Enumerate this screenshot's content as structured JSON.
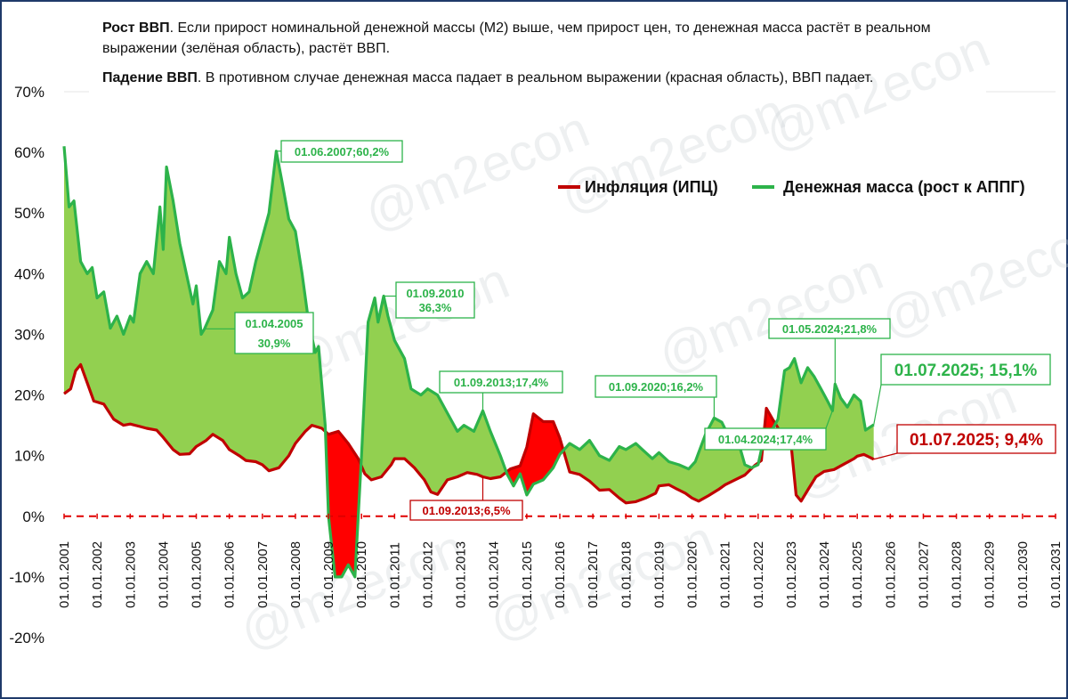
{
  "header": {
    "line1_bold": "Рост ВВП",
    "line1_text": ". Если прирост номинальной денежной массы (М2) выше, чем прирост цен,  то денежная масса растёт в реальном выражении (зелёная область), растёт ВВП.",
    "line2_bold": "Падение ВВП",
    "line2_text": ". В противном случае денежная масса падает в реальном выражении (красная область), ВВП падает."
  },
  "watermark": "@m2econ",
  "colors": {
    "inflation": "#c00000",
    "money": "#2db34a",
    "green_fill": "#92d050",
    "red_fill": "#ff0000",
    "zero_line": "#e00000",
    "frame": "#1f3a6a"
  },
  "chart_data": {
    "type": "line",
    "ylim": [
      -20,
      70
    ],
    "yticks": [
      "70%",
      "60%",
      "50%",
      "40%",
      "30%",
      "20%",
      "10%",
      "0%",
      "-10%",
      "-20%"
    ],
    "xticks": [
      "01.01.2001",
      "01.01.2002",
      "01.01.2003",
      "01.01.2004",
      "01.01.2005",
      "01.01.2006",
      "01.01.2007",
      "01.01.2008",
      "01.01.2009",
      "01.01.2010",
      "01.01.2011",
      "01.01.2012",
      "01.01.2013",
      "01.01.2014",
      "01.01.2015",
      "01.01.2016",
      "01.01.2017",
      "01.01.2018",
      "01.01.2019",
      "01.01.2020",
      "01.01.2021",
      "01.01.2022",
      "01.01.2023",
      "01.01.2024",
      "01.01.2025",
      "01.01.2026",
      "01.01.2027",
      "01.01.2028",
      "01.01.2029",
      "01.01.2030",
      "01.01.2031"
    ],
    "xlim": [
      2001.0,
      2031.0
    ],
    "series": [
      {
        "name": "Инфляция (ИПЦ)",
        "points": [
          [
            2001.0,
            20.2
          ],
          [
            2001.2,
            21
          ],
          [
            2001.35,
            24
          ],
          [
            2001.5,
            25
          ],
          [
            2001.7,
            22
          ],
          [
            2001.9,
            19
          ],
          [
            2002.2,
            18.5
          ],
          [
            2002.5,
            16
          ],
          [
            2002.8,
            15
          ],
          [
            2003.0,
            15.2
          ],
          [
            2003.3,
            14.8
          ],
          [
            2003.5,
            14.5
          ],
          [
            2003.8,
            14.2
          ],
          [
            2004.0,
            13
          ],
          [
            2004.3,
            11
          ],
          [
            2004.5,
            10.2
          ],
          [
            2004.8,
            10.3
          ],
          [
            2005.0,
            11.5
          ],
          [
            2005.3,
            12.5
          ],
          [
            2005.5,
            13.5
          ],
          [
            2005.8,
            12.5
          ],
          [
            2006.0,
            11
          ],
          [
            2006.3,
            10
          ],
          [
            2006.5,
            9.2
          ],
          [
            2006.8,
            9
          ],
          [
            2007.0,
            8.5
          ],
          [
            2007.2,
            7.5
          ],
          [
            2007.5,
            8
          ],
          [
            2007.8,
            10
          ],
          [
            2008.0,
            12
          ],
          [
            2008.3,
            14
          ],
          [
            2008.5,
            15
          ],
          [
            2008.8,
            14.5
          ],
          [
            2009.0,
            13.5
          ],
          [
            2009.3,
            14
          ],
          [
            2009.6,
            12
          ],
          [
            2009.9,
            9.5
          ],
          [
            2010.1,
            7
          ],
          [
            2010.3,
            6
          ],
          [
            2010.6,
            6.5
          ],
          [
            2010.9,
            8.5
          ],
          [
            2011.0,
            9.5
          ],
          [
            2011.3,
            9.5
          ],
          [
            2011.6,
            8
          ],
          [
            2011.9,
            6
          ],
          [
            2012.1,
            4
          ],
          [
            2012.3,
            3.6
          ],
          [
            2012.6,
            6
          ],
          [
            2012.9,
            6.5
          ],
          [
            2013.2,
            7.2
          ],
          [
            2013.5,
            6.9
          ],
          [
            2013.67,
            6.5
          ],
          [
            2013.9,
            6.2
          ],
          [
            2014.2,
            6.5
          ],
          [
            2014.5,
            7.8
          ],
          [
            2014.8,
            8.3
          ],
          [
            2015.0,
            11.4
          ],
          [
            2015.2,
            16.9
          ],
          [
            2015.5,
            15.6
          ],
          [
            2015.8,
            15.6
          ],
          [
            2016.0,
            12.9
          ],
          [
            2016.3,
            7.3
          ],
          [
            2016.6,
            6.9
          ],
          [
            2016.9,
            5.8
          ],
          [
            2017.2,
            4.3
          ],
          [
            2017.5,
            4.4
          ],
          [
            2017.8,
            3
          ],
          [
            2018.0,
            2.2
          ],
          [
            2018.3,
            2.4
          ],
          [
            2018.6,
            3
          ],
          [
            2018.9,
            3.8
          ],
          [
            2019.0,
            5
          ],
          [
            2019.3,
            5.2
          ],
          [
            2019.5,
            4.6
          ],
          [
            2019.8,
            3.8
          ],
          [
            2020.0,
            3
          ],
          [
            2020.2,
            2.5
          ],
          [
            2020.5,
            3.4
          ],
          [
            2020.8,
            4.4
          ],
          [
            2021.0,
            5.2
          ],
          [
            2021.3,
            6
          ],
          [
            2021.6,
            6.8
          ],
          [
            2021.9,
            8.4
          ],
          [
            2022.1,
            9.2
          ],
          [
            2022.25,
            17.8
          ],
          [
            2022.45,
            15.9
          ],
          [
            2022.7,
            13.7
          ],
          [
            2022.9,
            12
          ],
          [
            2023.0,
            11.8
          ],
          [
            2023.15,
            3.5
          ],
          [
            2023.3,
            2.5
          ],
          [
            2023.5,
            4.3
          ],
          [
            2023.75,
            6.5
          ],
          [
            2024.0,
            7.4
          ],
          [
            2024.3,
            7.7
          ],
          [
            2024.6,
            8.6
          ],
          [
            2024.9,
            9.5
          ],
          [
            2025.0,
            9.9
          ],
          [
            2025.2,
            10.2
          ],
          [
            2025.5,
            9.4
          ]
        ]
      },
      {
        "name": "Денежная масса (рост к АППГ)",
        "points": [
          [
            2001.0,
            61
          ],
          [
            2001.15,
            51
          ],
          [
            2001.3,
            52
          ],
          [
            2001.5,
            42
          ],
          [
            2001.7,
            40
          ],
          [
            2001.85,
            41
          ],
          [
            2002.0,
            36
          ],
          [
            2002.2,
            37
          ],
          [
            2002.4,
            31
          ],
          [
            2002.6,
            33
          ],
          [
            2002.8,
            30
          ],
          [
            2003.0,
            33
          ],
          [
            2003.1,
            32
          ],
          [
            2003.3,
            40
          ],
          [
            2003.5,
            42
          ],
          [
            2003.7,
            40
          ],
          [
            2003.9,
            51
          ],
          [
            2004.0,
            44
          ],
          [
            2004.1,
            57.6
          ],
          [
            2004.3,
            52
          ],
          [
            2004.5,
            45
          ],
          [
            2004.7,
            40
          ],
          [
            2004.9,
            35
          ],
          [
            2005.0,
            38
          ],
          [
            2005.15,
            30
          ],
          [
            2005.25,
            30.9
          ],
          [
            2005.5,
            34
          ],
          [
            2005.7,
            42
          ],
          [
            2005.9,
            40
          ],
          [
            2006.0,
            46
          ],
          [
            2006.2,
            40
          ],
          [
            2006.4,
            36
          ],
          [
            2006.6,
            37
          ],
          [
            2006.8,
            42
          ],
          [
            2007.0,
            46
          ],
          [
            2007.2,
            50
          ],
          [
            2007.42,
            60.2
          ],
          [
            2007.6,
            55
          ],
          [
            2007.8,
            49
          ],
          [
            2008.0,
            47
          ],
          [
            2008.2,
            40
          ],
          [
            2008.4,
            32
          ],
          [
            2008.6,
            27
          ],
          [
            2008.7,
            28
          ],
          [
            2008.9,
            15
          ],
          [
            2009.0,
            0
          ],
          [
            2009.2,
            -10
          ],
          [
            2009.4,
            -10
          ],
          [
            2009.6,
            -8
          ],
          [
            2009.8,
            -10
          ],
          [
            2010.0,
            10
          ],
          [
            2010.2,
            32
          ],
          [
            2010.4,
            36
          ],
          [
            2010.5,
            32
          ],
          [
            2010.67,
            36.3
          ],
          [
            2010.8,
            33
          ],
          [
            2011.0,
            29
          ],
          [
            2011.3,
            26
          ],
          [
            2011.5,
            21
          ],
          [
            2011.8,
            20
          ],
          [
            2012.0,
            21
          ],
          [
            2012.3,
            20
          ],
          [
            2012.6,
            17
          ],
          [
            2012.9,
            14
          ],
          [
            2013.1,
            15
          ],
          [
            2013.4,
            14
          ],
          [
            2013.67,
            17.4
          ],
          [
            2013.9,
            14
          ],
          [
            2014.2,
            10
          ],
          [
            2014.4,
            7
          ],
          [
            2014.6,
            5
          ],
          [
            2014.8,
            7
          ],
          [
            2015.0,
            3.5
          ],
          [
            2015.2,
            5.3
          ],
          [
            2015.5,
            6
          ],
          [
            2015.8,
            8
          ],
          [
            2016.0,
            10.2
          ],
          [
            2016.3,
            12
          ],
          [
            2016.6,
            11
          ],
          [
            2016.9,
            12.5
          ],
          [
            2017.2,
            10
          ],
          [
            2017.5,
            9.2
          ],
          [
            2017.8,
            11.5
          ],
          [
            2018.0,
            11
          ],
          [
            2018.3,
            12
          ],
          [
            2018.5,
            11
          ],
          [
            2018.8,
            9.5
          ],
          [
            2019.0,
            10.5
          ],
          [
            2019.3,
            9
          ],
          [
            2019.6,
            8.5
          ],
          [
            2019.9,
            7.8
          ],
          [
            2020.1,
            9
          ],
          [
            2020.4,
            13.4
          ],
          [
            2020.67,
            16.2
          ],
          [
            2020.9,
            15.5
          ],
          [
            2021.1,
            13.3
          ],
          [
            2021.4,
            12.3
          ],
          [
            2021.6,
            8.5
          ],
          [
            2021.8,
            8
          ],
          [
            2022.0,
            8.5
          ],
          [
            2022.2,
            13.5
          ],
          [
            2022.4,
            14
          ],
          [
            2022.6,
            16
          ],
          [
            2022.8,
            24
          ],
          [
            2022.95,
            24.5
          ],
          [
            2023.1,
            26
          ],
          [
            2023.3,
            22
          ],
          [
            2023.5,
            24.5
          ],
          [
            2023.7,
            23
          ],
          [
            2023.9,
            21
          ],
          [
            2024.1,
            19
          ],
          [
            2024.25,
            17.4
          ],
          [
            2024.33,
            21.8
          ],
          [
            2024.5,
            19.5
          ],
          [
            2024.7,
            18
          ],
          [
            2024.9,
            20
          ],
          [
            2025.1,
            19
          ],
          [
            2025.25,
            14.2
          ],
          [
            2025.5,
            15.1
          ]
        ]
      }
    ],
    "callouts": [
      {
        "text": "01.06.2007;60,2%",
        "series": 1
      },
      {
        "line1": "01.04.2005",
        "line2": "30,9%",
        "series": 1
      },
      {
        "line1": "01.09.2010",
        "line2": "36,3%",
        "series": 1
      },
      {
        "text": "01.09.2013;17,4%",
        "series": 1
      },
      {
        "text": "01.09.2013;6,5%",
        "series": 0
      },
      {
        "text": "01.09.2020;16,2%",
        "series": 1
      },
      {
        "text": "01.04.2024;17,4%",
        "series": 1
      },
      {
        "text": "01.05.2024;21,8%",
        "series": 1
      },
      {
        "text": "01.07.2025; 15,1%",
        "series": 1
      },
      {
        "text": "01.07.2025; 9,4%",
        "series": 0
      }
    ]
  }
}
